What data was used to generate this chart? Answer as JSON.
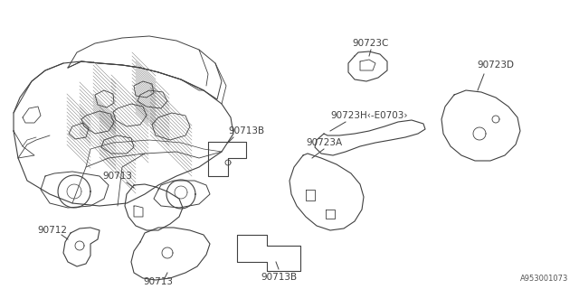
{
  "background_color": "#ffffff",
  "line_color": "#404040",
  "text_color": "#404040",
  "footer_text": "A953001073",
  "figsize": [
    6.4,
    3.2
  ],
  "dpi": 100,
  "xlim": [
    0,
    640
  ],
  "ylim": [
    320,
    0
  ]
}
